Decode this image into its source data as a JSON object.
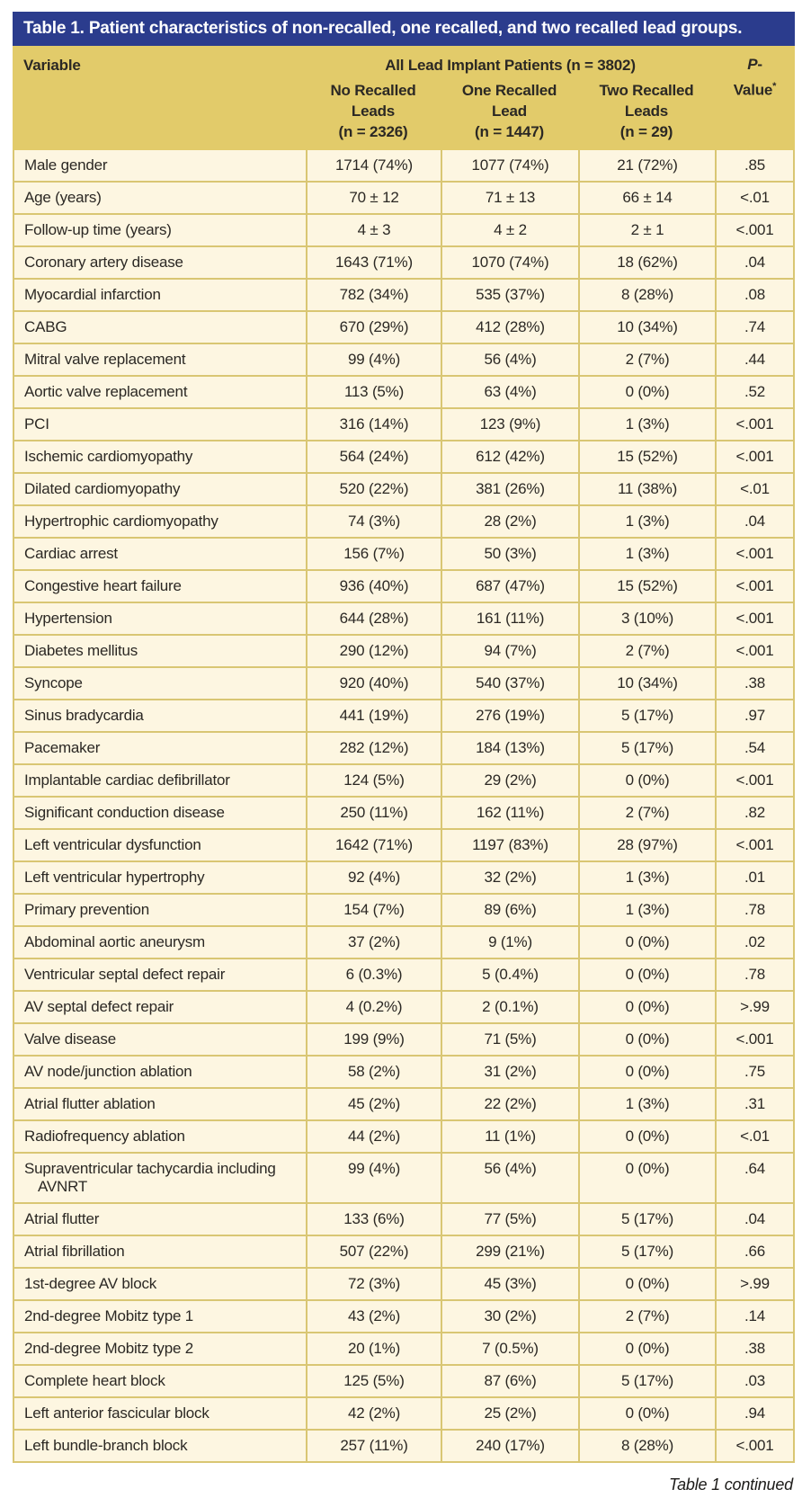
{
  "title": "Table 1. Patient characteristics of non-recalled, one recalled, and two recalled lead groups.",
  "header": {
    "variable_label": "Variable",
    "group_header": "All Lead Implant Patients (n = 3802)",
    "p_italic": "P",
    "p_dash": "-",
    "p_value_word": "Value",
    "p_asterisk": "*",
    "subheaders": {
      "no_recalled": [
        "No Recalled",
        "Leads",
        "(n = 2326)"
      ],
      "one_recalled": [
        "One Recalled",
        "Lead",
        "(n = 1447)"
      ],
      "two_recalled": [
        "Two Recalled",
        "Leads",
        "(n = 29)"
      ]
    }
  },
  "colors": {
    "title_bar": "#2b3c8d",
    "header_gold": "#e2cb6a",
    "row_cream": "#fdf6e1",
    "border_gold": "#d9c673"
  },
  "table": {
    "rows": [
      {
        "variable": "Male gender",
        "no_recalled_leads": "1714 (74%)",
        "one_recalled_lead": "1077 (74%)",
        "two_recalled_leads": "21 (72%)",
        "p_value": ".85"
      },
      {
        "variable": "Age (years)",
        "no_recalled_leads": "70 ± 12",
        "one_recalled_lead": "71 ± 13",
        "two_recalled_leads": "66 ± 14",
        "p_value": "<.01"
      },
      {
        "variable": "Follow-up time (years)",
        "no_recalled_leads": "4 ± 3",
        "one_recalled_lead": "4 ± 2",
        "two_recalled_leads": "2 ± 1",
        "p_value": "<.001"
      },
      {
        "variable": "Coronary artery disease",
        "no_recalled_leads": "1643 (71%)",
        "one_recalled_lead": "1070 (74%)",
        "two_recalled_leads": "18 (62%)",
        "p_value": ".04"
      },
      {
        "variable": "Myocardial infarction",
        "no_recalled_leads": "782 (34%)",
        "one_recalled_lead": "535 (37%)",
        "two_recalled_leads": "8 (28%)",
        "p_value": ".08"
      },
      {
        "variable": "CABG",
        "no_recalled_leads": "670 (29%)",
        "one_recalled_lead": "412 (28%)",
        "two_recalled_leads": "10 (34%)",
        "p_value": ".74"
      },
      {
        "variable": "Mitral valve replacement",
        "no_recalled_leads": "99 (4%)",
        "one_recalled_lead": "56 (4%)",
        "two_recalled_leads": "2 (7%)",
        "p_value": ".44"
      },
      {
        "variable": "Aortic valve replacement",
        "no_recalled_leads": "113 (5%)",
        "one_recalled_lead": "63 (4%)",
        "two_recalled_leads": "0 (0%)",
        "p_value": ".52"
      },
      {
        "variable": "PCI",
        "no_recalled_leads": "316 (14%)",
        "one_recalled_lead": "123 (9%)",
        "two_recalled_leads": "1 (3%)",
        "p_value": "<.001"
      },
      {
        "variable": "Ischemic cardiomyopathy",
        "no_recalled_leads": "564 (24%)",
        "one_recalled_lead": "612 (42%)",
        "two_recalled_leads": "15 (52%)",
        "p_value": "<.001"
      },
      {
        "variable": "Dilated cardiomyopathy",
        "no_recalled_leads": "520 (22%)",
        "one_recalled_lead": "381 (26%)",
        "two_recalled_leads": "11 (38%)",
        "p_value": "<.01"
      },
      {
        "variable": "Hypertrophic cardiomyopathy",
        "no_recalled_leads": "74 (3%)",
        "one_recalled_lead": "28 (2%)",
        "two_recalled_leads": "1 (3%)",
        "p_value": ".04"
      },
      {
        "variable": "Cardiac arrest",
        "no_recalled_leads": "156 (7%)",
        "one_recalled_lead": "50 (3%)",
        "two_recalled_leads": "1 (3%)",
        "p_value": "<.001"
      },
      {
        "variable": "Congestive heart failure",
        "no_recalled_leads": "936 (40%)",
        "one_recalled_lead": "687 (47%)",
        "two_recalled_leads": "15 (52%)",
        "p_value": "<.001"
      },
      {
        "variable": "Hypertension",
        "no_recalled_leads": "644 (28%)",
        "one_recalled_lead": "161 (11%)",
        "two_recalled_leads": "3 (10%)",
        "p_value": "<.001"
      },
      {
        "variable": "Diabetes mellitus",
        "no_recalled_leads": "290 (12%)",
        "one_recalled_lead": "94 (7%)",
        "two_recalled_leads": "2 (7%)",
        "p_value": "<.001"
      },
      {
        "variable": "Syncope",
        "no_recalled_leads": "920 (40%)",
        "one_recalled_lead": "540 (37%)",
        "two_recalled_leads": "10 (34%)",
        "p_value": ".38"
      },
      {
        "variable": "Sinus bradycardia",
        "no_recalled_leads": "441 (19%)",
        "one_recalled_lead": "276 (19%)",
        "two_recalled_leads": "5 (17%)",
        "p_value": ".97"
      },
      {
        "variable": "Pacemaker",
        "no_recalled_leads": "282 (12%)",
        "one_recalled_lead": "184 (13%)",
        "two_recalled_leads": "5 (17%)",
        "p_value": ".54"
      },
      {
        "variable": "Implantable cardiac defibrillator",
        "no_recalled_leads": "124 (5%)",
        "one_recalled_lead": "29 (2%)",
        "two_recalled_leads": "0 (0%)",
        "p_value": "<.001"
      },
      {
        "variable": "Significant conduction disease",
        "no_recalled_leads": "250 (11%)",
        "one_recalled_lead": "162 (11%)",
        "two_recalled_leads": "2 (7%)",
        "p_value": ".82"
      },
      {
        "variable": "Left ventricular dysfunction",
        "no_recalled_leads": "1642 (71%)",
        "one_recalled_lead": "1197 (83%)",
        "two_recalled_leads": "28 (97%)",
        "p_value": "<.001"
      },
      {
        "variable": "Left ventricular hypertrophy",
        "no_recalled_leads": "92 (4%)",
        "one_recalled_lead": "32 (2%)",
        "two_recalled_leads": "1 (3%)",
        "p_value": ".01"
      },
      {
        "variable": "Primary prevention",
        "no_recalled_leads": "154 (7%)",
        "one_recalled_lead": "89 (6%)",
        "two_recalled_leads": "1 (3%)",
        "p_value": ".78"
      },
      {
        "variable": "Abdominal aortic aneurysm",
        "no_recalled_leads": "37 (2%)",
        "one_recalled_lead": "9 (1%)",
        "two_recalled_leads": "0 (0%)",
        "p_value": ".02"
      },
      {
        "variable": "Ventricular septal defect repair",
        "no_recalled_leads": "6 (0.3%)",
        "one_recalled_lead": "5 (0.4%)",
        "two_recalled_leads": "0 (0%)",
        "p_value": ".78"
      },
      {
        "variable": "AV septal defect repair",
        "no_recalled_leads": "4 (0.2%)",
        "one_recalled_lead": "2 (0.1%)",
        "two_recalled_leads": "0 (0%)",
        "p_value": ">.99"
      },
      {
        "variable": "Valve disease",
        "no_recalled_leads": "199 (9%)",
        "one_recalled_lead": "71 (5%)",
        "two_recalled_leads": "0 (0%)",
        "p_value": "<.001"
      },
      {
        "variable": "AV node/junction ablation",
        "no_recalled_leads": "58 (2%)",
        "one_recalled_lead": "31 (2%)",
        "two_recalled_leads": "0 (0%)",
        "p_value": ".75"
      },
      {
        "variable": "Atrial flutter ablation",
        "no_recalled_leads": "45 (2%)",
        "one_recalled_lead": "22 (2%)",
        "two_recalled_leads": "1 (3%)",
        "p_value": ".31"
      },
      {
        "variable": "Radiofrequency ablation",
        "no_recalled_leads": "44 (2%)",
        "one_recalled_lead": "11 (1%)",
        "two_recalled_leads": "0 (0%)",
        "p_value": "<.01"
      },
      {
        "variable": "Supraventricular tachycardia including AVNRT",
        "no_recalled_leads": "99 (4%)",
        "one_recalled_lead": "56 (4%)",
        "two_recalled_leads": "0 (0%)",
        "p_value": ".64"
      },
      {
        "variable": "Atrial flutter",
        "no_recalled_leads": "133 (6%)",
        "one_recalled_lead": "77 (5%)",
        "two_recalled_leads": "5 (17%)",
        "p_value": ".04"
      },
      {
        "variable": "Atrial fibrillation",
        "no_recalled_leads": "507 (22%)",
        "one_recalled_lead": "299 (21%)",
        "two_recalled_leads": "5 (17%)",
        "p_value": ".66"
      },
      {
        "variable": "1st-degree AV block",
        "no_recalled_leads": "72 (3%)",
        "one_recalled_lead": "45 (3%)",
        "two_recalled_leads": "0 (0%)",
        "p_value": ">.99"
      },
      {
        "variable": "2nd-degree Mobitz type 1",
        "no_recalled_leads": "43 (2%)",
        "one_recalled_lead": "30 (2%)",
        "two_recalled_leads": "2 (7%)",
        "p_value": ".14"
      },
      {
        "variable": "2nd-degree Mobitz type 2",
        "no_recalled_leads": "20 (1%)",
        "one_recalled_lead": "7 (0.5%)",
        "two_recalled_leads": "0 (0%)",
        "p_value": ".38"
      },
      {
        "variable": "Complete heart block",
        "no_recalled_leads": "125 (5%)",
        "one_recalled_lead": "87 (6%)",
        "two_recalled_leads": "5 (17%)",
        "p_value": ".03"
      },
      {
        "variable": "Left anterior fascicular block",
        "no_recalled_leads": "42 (2%)",
        "one_recalled_lead": "25 (2%)",
        "two_recalled_leads": "0 (0%)",
        "p_value": ".94"
      },
      {
        "variable": "Left bundle-branch block",
        "no_recalled_leads": "257 (11%)",
        "one_recalled_lead": "240 (17%)",
        "two_recalled_leads": "8 (28%)",
        "p_value": "<.001"
      }
    ]
  },
  "footer": "Table 1 continued"
}
